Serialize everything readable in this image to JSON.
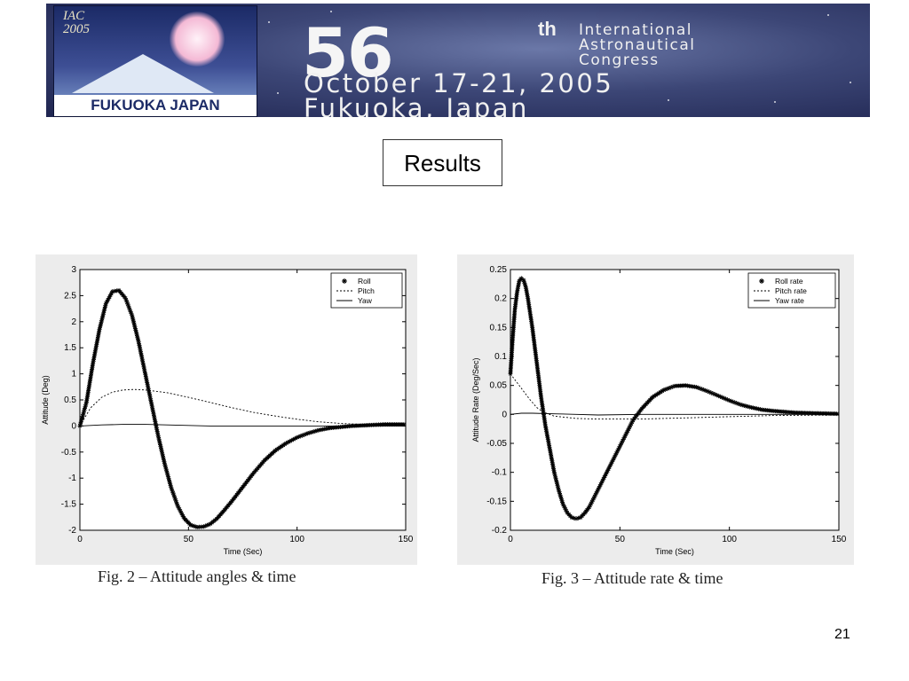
{
  "banner": {
    "logo_title": "IAC\n2005",
    "logo_location": "FUKUOKA JAPAN",
    "congress_number": "56",
    "congress_suffix": "th",
    "congress_name": "International\nAstronautical\nCongress",
    "dates": "October 17-21, 2005\nFukuoka, Japan"
  },
  "slide": {
    "title": "Results",
    "page_number": "21"
  },
  "colors": {
    "line": "#000000",
    "figure_background": "#ececec",
    "banner_dark": "#1f2550"
  },
  "chart_data": [
    {
      "type": "line",
      "caption": "Fig. 2 – Attitude angles & time",
      "xlabel": "Time (Sec)",
      "ylabel": "Attitude (Deg)",
      "xlim": [
        0,
        150
      ],
      "ylim": [
        -2,
        3
      ],
      "xticks": [
        "0",
        "50",
        "100",
        "150"
      ],
      "yticks": [
        "-2",
        "-1.5",
        "-1",
        "-0.5",
        "0",
        "0.5",
        "1",
        "1.5",
        "2",
        "2.5",
        "3"
      ],
      "legend_position": "top-right",
      "series": [
        {
          "name": "Roll",
          "style": "markers-star",
          "x": [
            0,
            3,
            6,
            9,
            12,
            15,
            18,
            21,
            24,
            27,
            30,
            33,
            36,
            39,
            42,
            45,
            48,
            51,
            54,
            57,
            60,
            63,
            66,
            70,
            75,
            80,
            85,
            90,
            95,
            100,
            105,
            110,
            115,
            120,
            125,
            130,
            135,
            140,
            145,
            150
          ],
          "y": [
            0,
            0.45,
            1.2,
            1.85,
            2.35,
            2.58,
            2.6,
            2.45,
            2.12,
            1.62,
            1.02,
            0.42,
            -0.18,
            -0.72,
            -1.18,
            -1.53,
            -1.77,
            -1.9,
            -1.94,
            -1.93,
            -1.88,
            -1.78,
            -1.64,
            -1.44,
            -1.17,
            -0.9,
            -0.66,
            -0.47,
            -0.33,
            -0.22,
            -0.14,
            -0.08,
            -0.04,
            -0.02,
            0,
            0.01,
            0.02,
            0.03,
            0.03,
            0.03
          ]
        },
        {
          "name": "Pitch",
          "style": "dashed",
          "x": [
            0,
            5,
            10,
            15,
            20,
            25,
            30,
            40,
            50,
            60,
            70,
            80,
            90,
            100,
            110,
            120,
            130,
            140,
            150
          ],
          "y": [
            0,
            0.35,
            0.55,
            0.65,
            0.69,
            0.7,
            0.69,
            0.64,
            0.55,
            0.45,
            0.35,
            0.26,
            0.19,
            0.13,
            0.08,
            0.05,
            0.03,
            0.02,
            0.01
          ]
        },
        {
          "name": "Yaw",
          "style": "solid",
          "x": [
            0,
            10,
            20,
            30,
            40,
            50,
            60,
            80,
            100,
            120,
            150
          ],
          "y": [
            0,
            0.02,
            0.03,
            0.03,
            0.02,
            0.01,
            0,
            0,
            0,
            0,
            0
          ]
        }
      ]
    },
    {
      "type": "line",
      "caption": "Fig. 3 – Attitude rate & time",
      "xlabel": "Time (Sec)",
      "ylabel": "Attitude Rate (Deg/Sec)",
      "xlim": [
        0,
        150
      ],
      "ylim": [
        -0.2,
        0.25
      ],
      "xticks": [
        "0",
        "50",
        "100",
        "150"
      ],
      "yticks": [
        "-0.2",
        "-0.15",
        "-0.1",
        "-0.05",
        "0",
        "0.05",
        "0.1",
        "0.15",
        "0.2",
        "0.25"
      ],
      "legend_position": "top-right",
      "series": [
        {
          "name": "Roll rate",
          "style": "markers-star",
          "x": [
            0,
            1,
            2,
            3,
            4,
            5,
            6,
            7,
            8,
            10,
            12,
            14,
            16,
            18,
            20,
            22,
            24,
            26,
            28,
            30,
            32,
            34,
            36,
            38,
            40,
            44,
            48,
            52,
            56,
            60,
            65,
            70,
            75,
            80,
            85,
            90,
            95,
            100,
            105,
            110,
            115,
            120,
            130,
            140,
            150
          ],
          "y": [
            0.07,
            0.13,
            0.18,
            0.21,
            0.23,
            0.235,
            0.232,
            0.22,
            0.2,
            0.15,
            0.09,
            0.03,
            -0.02,
            -0.06,
            -0.1,
            -0.13,
            -0.155,
            -0.17,
            -0.178,
            -0.18,
            -0.178,
            -0.17,
            -0.16,
            -0.145,
            -0.13,
            -0.1,
            -0.07,
            -0.04,
            -0.01,
            0.01,
            0.03,
            0.042,
            0.049,
            0.05,
            0.047,
            0.04,
            0.032,
            0.024,
            0.017,
            0.012,
            0.008,
            0.006,
            0.003,
            0.002,
            0.001
          ]
        },
        {
          "name": "Pitch rate",
          "style": "dashed",
          "x": [
            0,
            3,
            6,
            9,
            12,
            15,
            20,
            30,
            40,
            50,
            60,
            70,
            80,
            90,
            100,
            120,
            150
          ],
          "y": [
            0.07,
            0.055,
            0.04,
            0.025,
            0.012,
            0.004,
            -0.003,
            -0.007,
            -0.008,
            -0.008,
            -0.008,
            -0.007,
            -0.006,
            -0.005,
            -0.004,
            -0.002,
            -0.001
          ]
        },
        {
          "name": "Yaw rate",
          "style": "solid",
          "x": [
            0,
            5,
            10,
            20,
            30,
            40,
            60,
            100,
            150
          ],
          "y": [
            0,
            0.002,
            0.002,
            0.001,
            0,
            -0.001,
            0,
            0,
            0
          ]
        }
      ]
    }
  ]
}
